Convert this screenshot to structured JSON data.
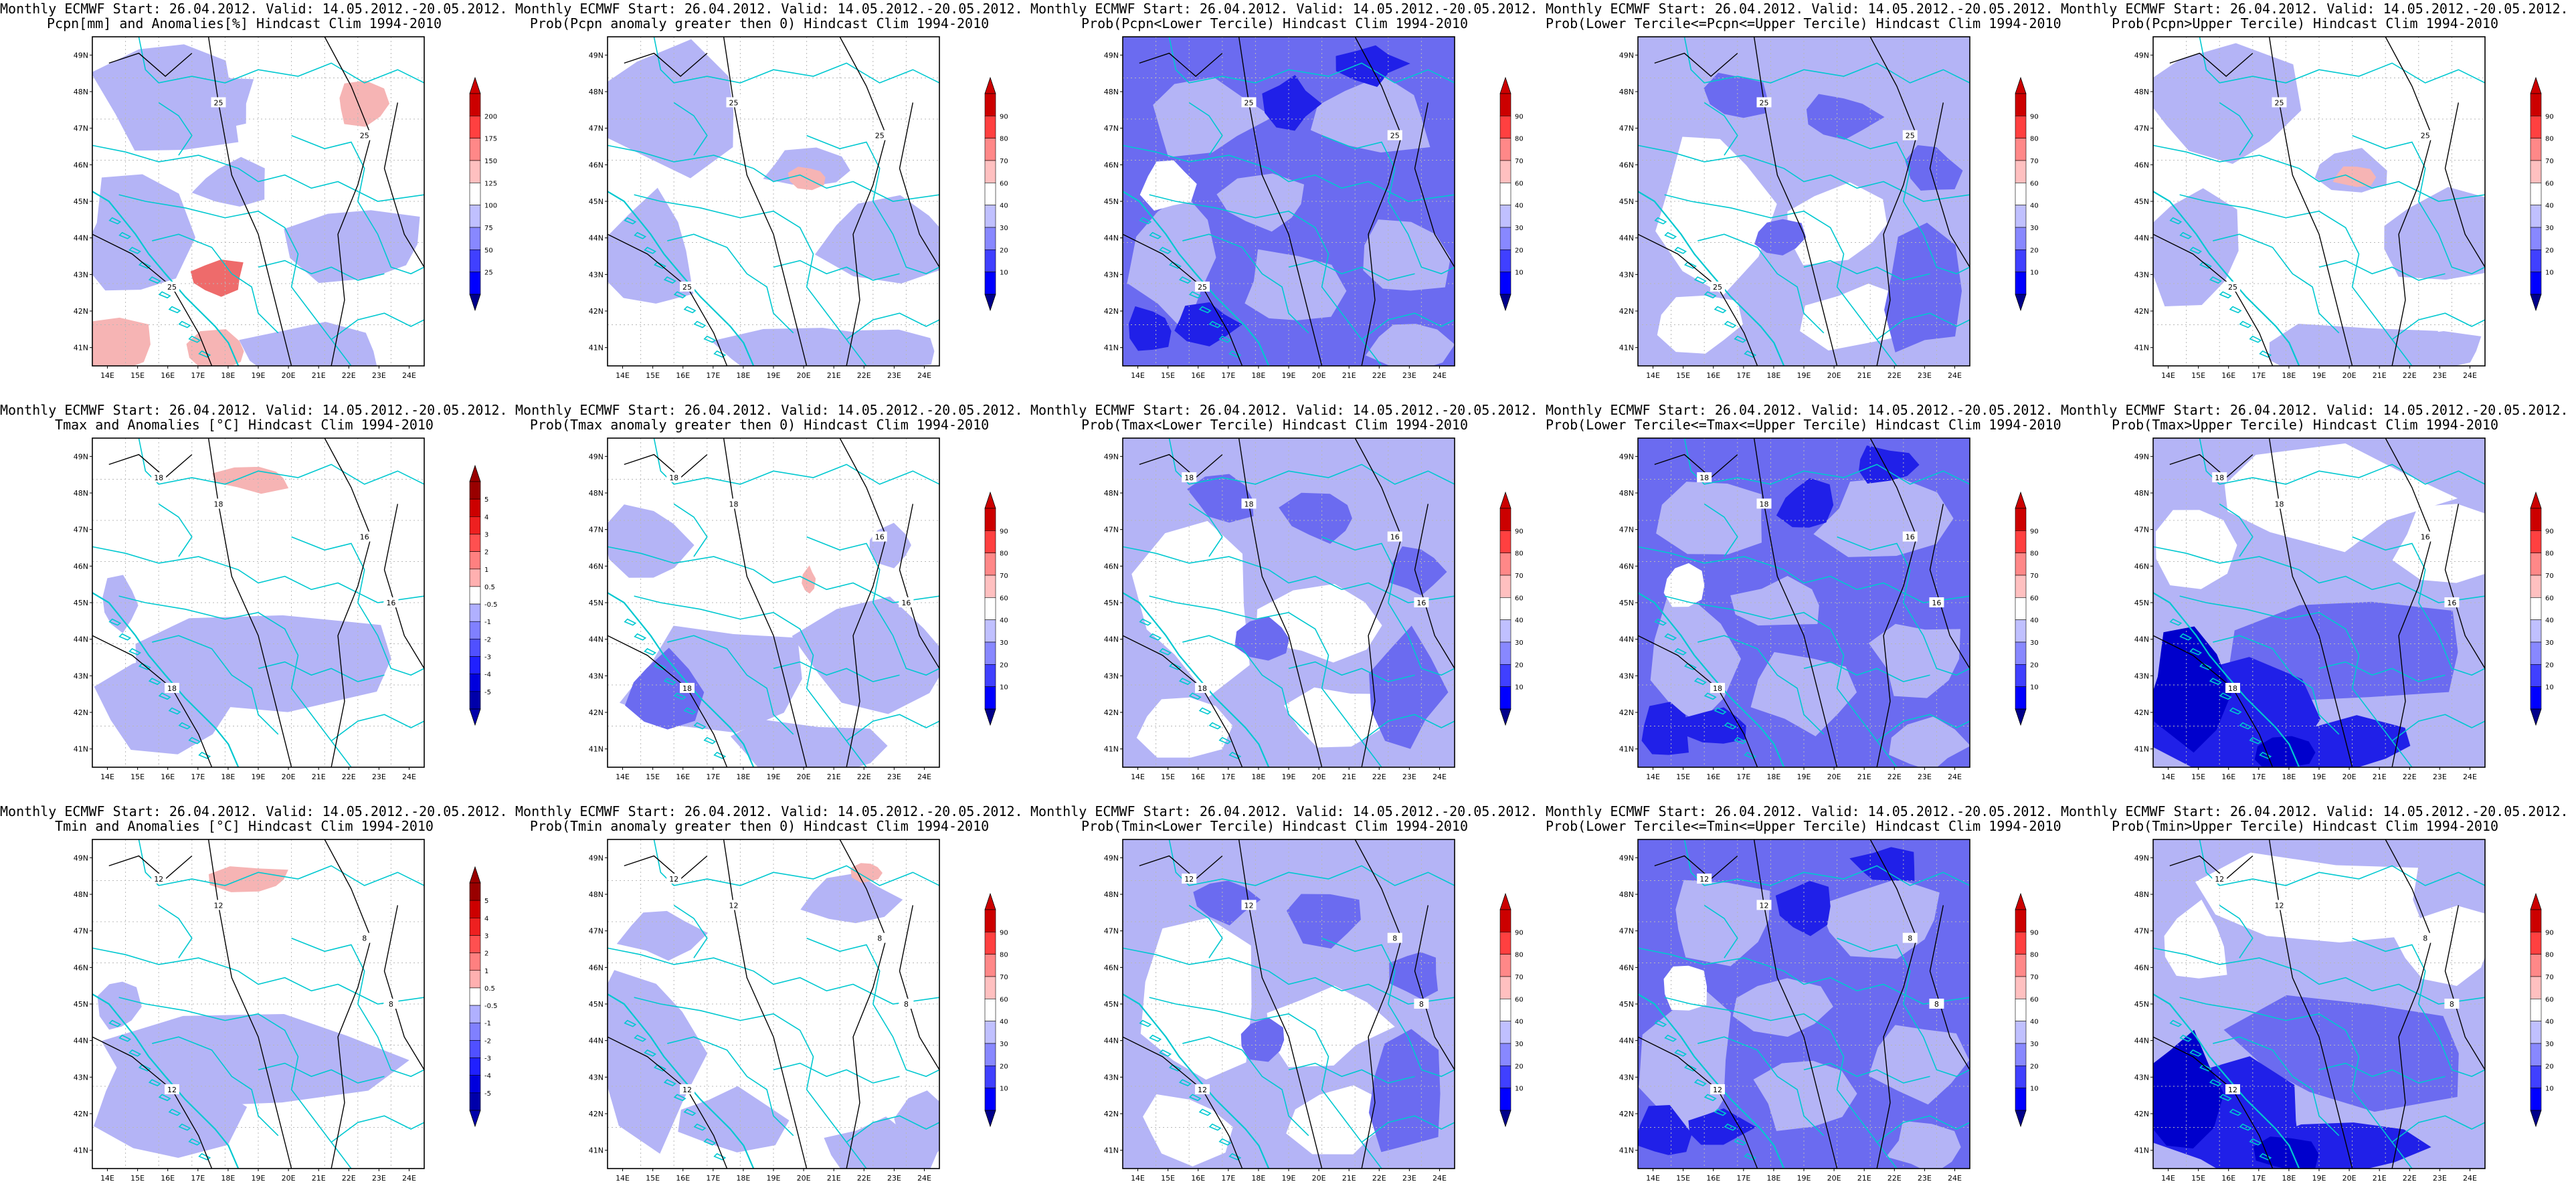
{
  "shared": {
    "lat_labels": [
      "41N",
      "42N",
      "43N",
      "44N",
      "45N",
      "46N",
      "47N",
      "48N",
      "49N"
    ],
    "lon_labels": [
      "14E",
      "15E",
      "16E",
      "17E",
      "18E",
      "19E",
      "20E",
      "21E",
      "22E",
      "23E",
      "24E"
    ]
  },
  "colors": {
    "blue_scale": [
      "#0000cc",
      "#2020e8",
      "#6b6bf0",
      "#b4b4f6",
      "#ffffff",
      "#f6b4b4",
      "#ee6b6b",
      "#dd2020",
      "#990000"
    ],
    "contour": "#000000",
    "borders": "#00c8d0",
    "grid_lines": "#b8b8b8"
  },
  "panels": [
    {
      "title1": "Monthly ECMWF Start: 26.04.2012. Valid: 14.05.2012.-20.05.2012.",
      "title2": "Pcpn[mm] and Anomalies[%] Hindcast Clim 1994-2010",
      "colorbar_ticks": [
        "25",
        "50",
        "75",
        "100",
        "125",
        "150",
        "175",
        "200"
      ],
      "contour_labels": [
        "25",
        "25",
        "25"
      ],
      "row": 0,
      "col": 0,
      "tone": "anom"
    },
    {
      "title1": "Monthly ECMWF Start: 26.04.2012. Valid: 14.05.2012.-20.05.2012.",
      "title2": "Prob(Pcpn anomaly greater then 0) Hindcast Clim 1994-2010",
      "colorbar_ticks": [
        "10",
        "20",
        "30",
        "40",
        "60",
        "70",
        "80",
        "90"
      ],
      "contour_labels": [
        "25",
        "25",
        "25"
      ],
      "row": 0,
      "col": 1,
      "tone": "light"
    },
    {
      "title1": "Monthly ECMWF Start: 26.04.2012. Valid: 14.05.2012.-20.05.2012.",
      "title2": "Prob(Pcpn<Lower Tercile) Hindcast Clim 1994-2010",
      "colorbar_ticks": [
        "10",
        "20",
        "30",
        "40",
        "60",
        "70",
        "80",
        "90"
      ],
      "contour_labels": [
        "25",
        "25",
        "25"
      ],
      "row": 0,
      "col": 2,
      "tone": "dark"
    },
    {
      "title1": "Monthly ECMWF Start: 26.04.2012. Valid: 14.05.2012.-20.05.2012.",
      "title2": "Prob(Lower Tercile<=Pcpn<=Upper Tercile) Hindcast Clim 1994-2010",
      "colorbar_ticks": [
        "10",
        "20",
        "30",
        "40",
        "60",
        "70",
        "80",
        "90"
      ],
      "contour_labels": [
        "25",
        "25",
        "25"
      ],
      "row": 0,
      "col": 3,
      "tone": "mid"
    },
    {
      "title1": "Monthly ECMWF Start: 26.04.2012. Valid: 14.05.2012.-20.05.2012.",
      "title2": "Prob(Pcpn>Upper Tercile) Hindcast Clim 1994-2010",
      "colorbar_ticks": [
        "10",
        "20",
        "30",
        "40",
        "60",
        "70",
        "80",
        "90"
      ],
      "contour_labels": [
        "25",
        "25",
        "25"
      ],
      "row": 0,
      "col": 4,
      "tone": "light"
    },
    {
      "title1": "Monthly ECMWF Start: 26.04.2012. Valid: 14.05.2012.-20.05.2012.",
      "title2": "Tmax and Anomalies [°C] Hindcast Clim 1994-2010",
      "colorbar_ticks": [
        "-5",
        "-4",
        "-3",
        "-2",
        "-1",
        "-0.5",
        "0.5",
        "1",
        "2",
        "3",
        "4",
        "5"
      ],
      "contour_labels": [
        "18",
        "16",
        "18",
        "16",
        "18"
      ],
      "row": 1,
      "col": 0,
      "tone": "anom_t"
    },
    {
      "title1": "Monthly ECMWF Start: 26.04.2012. Valid: 14.05.2012.-20.05.2012.",
      "title2": "Prob(Tmax anomaly greater then 0) Hindcast Clim 1994-2010",
      "colorbar_ticks": [
        "10",
        "20",
        "30",
        "40",
        "60",
        "70",
        "80",
        "90"
      ],
      "contour_labels": [
        "18",
        "16",
        "18",
        "16",
        "18"
      ],
      "row": 1,
      "col": 1,
      "tone": "mid_s"
    },
    {
      "title1": "Monthly ECMWF Start: 26.04.2012. Valid: 14.05.2012.-20.05.2012.",
      "title2": "Prob(Tmax<Lower Tercile) Hindcast Clim 1994-2010",
      "colorbar_ticks": [
        "10",
        "20",
        "30",
        "40",
        "60",
        "70",
        "80",
        "90"
      ],
      "contour_labels": [
        "18",
        "16",
        "18",
        "16",
        "18"
      ],
      "row": 1,
      "col": 2,
      "tone": "mid"
    },
    {
      "title1": "Monthly ECMWF Start: 26.04.2012. Valid: 14.05.2012.-20.05.2012.",
      "title2": "Prob(Lower Tercile<=Tmax<=Upper Tercile) Hindcast Clim 1994-2010",
      "colorbar_ticks": [
        "10",
        "20",
        "30",
        "40",
        "60",
        "70",
        "80",
        "90"
      ],
      "contour_labels": [
        "18",
        "16",
        "18",
        "16",
        "18"
      ],
      "row": 1,
      "col": 3,
      "tone": "dark"
    },
    {
      "title1": "Monthly ECMWF Start: 26.04.2012. Valid: 14.05.2012.-20.05.2012.",
      "title2": "Prob(Tmax>Upper Tercile) Hindcast Clim 1994-2010",
      "colorbar_ticks": [
        "10",
        "20",
        "30",
        "40",
        "60",
        "70",
        "80",
        "90"
      ],
      "contour_labels": [
        "18",
        "16",
        "18",
        "16",
        "18"
      ],
      "row": 1,
      "col": 4,
      "tone": "darkest"
    },
    {
      "title1": "Monthly ECMWF Start: 26.04.2012. Valid: 14.05.2012.-20.05.2012.",
      "title2": "Tmin and Anomalies [°C] Hindcast Clim 1994-2010",
      "colorbar_ticks": [
        "-5",
        "-4",
        "-3",
        "-2",
        "-1",
        "-0.5",
        "0.5",
        "1",
        "2",
        "3",
        "4",
        "5"
      ],
      "contour_labels": [
        "12",
        "8",
        "12",
        "8",
        "12"
      ],
      "row": 2,
      "col": 0,
      "tone": "anom_t"
    },
    {
      "title1": "Monthly ECMWF Start: 26.04.2012. Valid: 14.05.2012.-20.05.2012.",
      "title2": "Prob(Tmin anomaly greater then 0) Hindcast Clim 1994-2010",
      "colorbar_ticks": [
        "10",
        "20",
        "30",
        "40",
        "60",
        "70",
        "80",
        "90"
      ],
      "contour_labels": [
        "12",
        "8",
        "12",
        "8",
        "12"
      ],
      "row": 2,
      "col": 1,
      "tone": "light_s"
    },
    {
      "title1": "Monthly ECMWF Start: 26.04.2012. Valid: 14.05.2012.-20.05.2012.",
      "title2": "Prob(Tmin<Lower Tercile) Hindcast Clim 1994-2010",
      "colorbar_ticks": [
        "10",
        "20",
        "30",
        "40",
        "60",
        "70",
        "80",
        "90"
      ],
      "contour_labels": [
        "12",
        "8",
        "12",
        "8",
        "12"
      ],
      "row": 2,
      "col": 2,
      "tone": "mid"
    },
    {
      "title1": "Monthly ECMWF Start: 26.04.2012. Valid: 14.05.2012.-20.05.2012.",
      "title2": "Prob(Lower Tercile<=Tmin<=Upper Tercile) Hindcast Clim 1994-2010",
      "colorbar_ticks": [
        "10",
        "20",
        "30",
        "40",
        "60",
        "70",
        "80",
        "90"
      ],
      "contour_labels": [
        "12",
        "8",
        "12",
        "8",
        "12"
      ],
      "row": 2,
      "col": 3,
      "tone": "dark"
    },
    {
      "title1": "Monthly ECMWF Start: 26.04.2012. Valid: 14.05.2012.-20.05.2012.",
      "title2": "Prob(Tmin>Upper Tercile) Hindcast Clim 1994-2010",
      "colorbar_ticks": [
        "10",
        "20",
        "30",
        "40",
        "60",
        "70",
        "80",
        "90"
      ],
      "contour_labels": [
        "12",
        "8",
        "12",
        "8",
        "12"
      ],
      "row": 2,
      "col": 4,
      "tone": "darkest"
    }
  ]
}
